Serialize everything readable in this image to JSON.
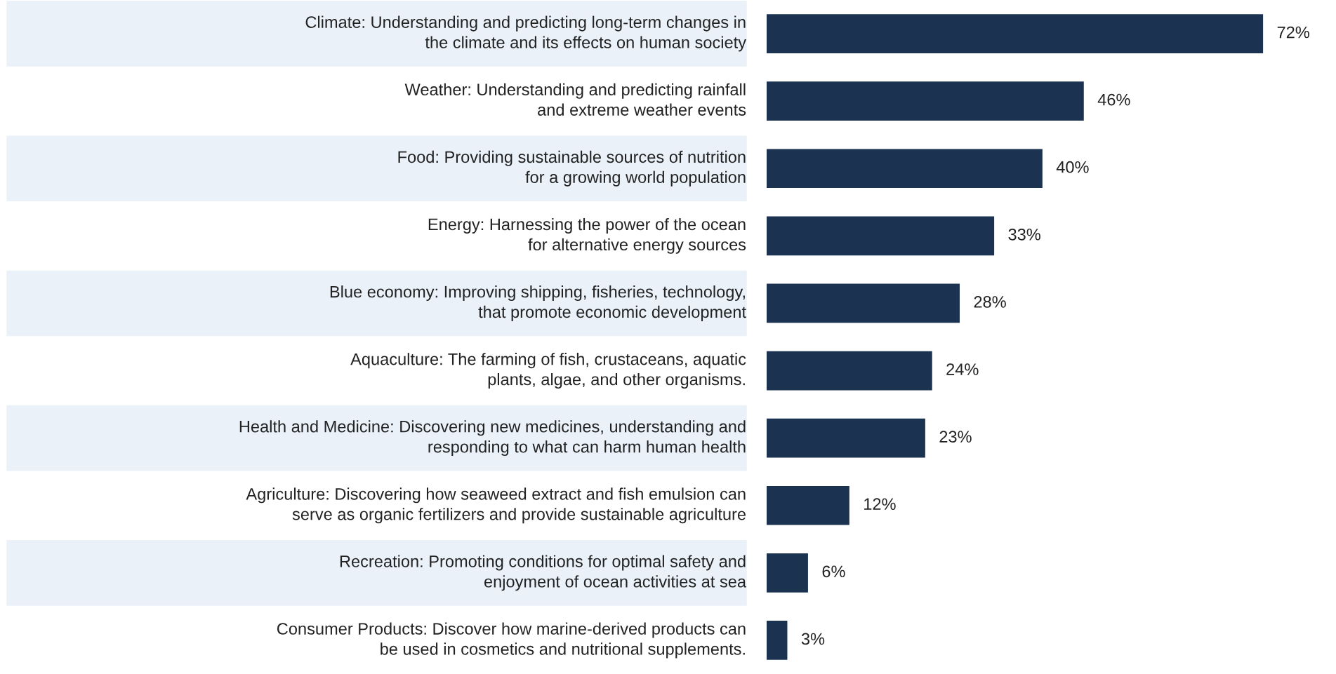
{
  "chart_data": {
    "type": "bar",
    "orientation": "horizontal",
    "data_labels": true,
    "legend": false,
    "categories": [
      "Climate: Understanding and predicting long-term changes in\nthe climate and its effects on human society",
      "Weather: Understanding and predicting rainfall\nand extreme weather events",
      "Food: Providing sustainable sources of nutrition\nfor a growing world population",
      "Energy: Harnessing the power of the ocean\nfor alternative energy sources",
      "Blue economy: Improving shipping, fisheries, technology,\nthat promote economic development",
      "Aquaculture: The farming of fish, crustaceans, aquatic\nplants, algae, and other organisms.",
      "Health and Medicine: Discovering new medicines, understanding and\nresponding to what can harm human health",
      "Agriculture: Discovering how seaweed extract and fish emulsion can\nserve as organic fertilizers and provide sustainable agriculture",
      "Recreation: Promoting conditions for optimal safety and\nenjoyment of ocean activities at sea",
      "Consumer Products: Discover how marine-derived products can\nbe used in cosmetics and nutritional supplements."
    ],
    "values": [
      72,
      46,
      40,
      33,
      28,
      24,
      23,
      12,
      6,
      3
    ],
    "value_labels": [
      "72%",
      "46%",
      "40%",
      "33%",
      "28%",
      "24%",
      "23%",
      "12%",
      "6%",
      "3%"
    ],
    "color": "#1b3350"
  }
}
